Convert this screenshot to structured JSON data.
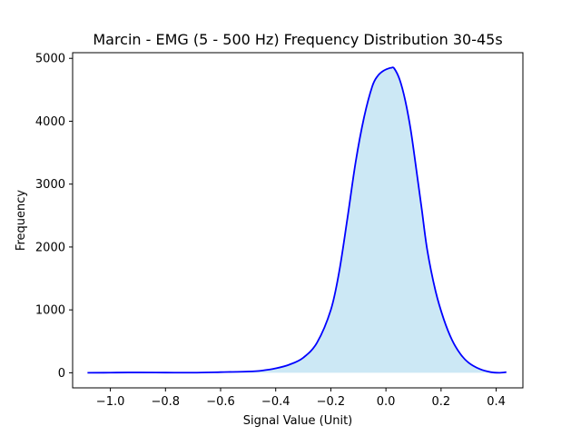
{
  "chart_data": {
    "type": "area",
    "title": "Marcin - EMG (5 - 500 Hz) Frequency Distribution 30-45s",
    "xlabel": "Signal Value (Unit)",
    "ylabel": "Frequency",
    "xlim": [
      -1.137,
      0.497
    ],
    "ylim": [
      -240,
      5090
    ],
    "xticks": [
      -1.0,
      -0.8,
      -0.6,
      -0.4,
      -0.2,
      0.0,
      0.2,
      0.4
    ],
    "xtick_labels": [
      "−1.0",
      "−0.8",
      "−0.6",
      "−0.4",
      "−0.2",
      "0.0",
      "0.2",
      "0.4"
    ],
    "yticks": [
      0,
      1000,
      2000,
      3000,
      4000,
      5000
    ],
    "ytick_labels": [
      "0",
      "1000",
      "2000",
      "3000",
      "4000",
      "5000"
    ],
    "grid": false,
    "series": [
      {
        "line_color": "#0000ff",
        "fill_color": "#cce8f5",
        "x": [
          -1.083,
          -1.0,
          -0.9,
          -0.8,
          -0.7,
          -0.6,
          -0.5,
          -0.45,
          -0.4,
          -0.35,
          -0.3,
          -0.25,
          -0.2,
          -0.17,
          -0.14,
          -0.11,
          -0.08,
          -0.05,
          -0.03,
          -0.01,
          0.01,
          0.02,
          0.03,
          0.05,
          0.07,
          0.09,
          0.11,
          0.13,
          0.15,
          0.18,
          0.21,
          0.24,
          0.27,
          0.3,
          0.34,
          0.38,
          0.41,
          0.437
        ],
        "y": [
          0,
          2,
          5,
          3,
          2,
          10,
          20,
          35,
          70,
          130,
          240,
          480,
          1000,
          1600,
          2450,
          3350,
          4050,
          4550,
          4720,
          4800,
          4840,
          4850,
          4840,
          4660,
          4330,
          3860,
          3240,
          2600,
          1950,
          1300,
          850,
          520,
          300,
          160,
          60,
          10,
          0,
          10
        ]
      }
    ]
  }
}
